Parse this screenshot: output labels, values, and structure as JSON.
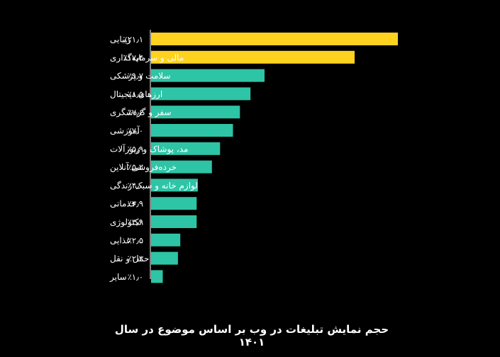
{
  "chart_data": {
    "type": "bar",
    "orientation": "horizontal",
    "title": "حجم نمایش تبلیغات در وب بر اساس موضوع در سال ۱۴۰۱",
    "categories": [
      "زیبایی",
      "مالی و سرمایه‌گذاری",
      "سلامت و پزشکی",
      "ارزهای دیجیتال",
      "سفر و گردشگری",
      "آموزشی",
      "مد، پوشاک و زیورآلات",
      "خرده‌فروشی آنلاین",
      "لوازم خانه و سبک زندگی",
      "خدماتی",
      "تکنولوژی",
      "غذایی",
      "حمل و نقل",
      "سایر"
    ],
    "values": [
      21.1,
      17.4,
      9.7,
      8.5,
      7.6,
      7.0,
      5.9,
      5.2,
      4.0,
      3.9,
      3.9,
      2.5,
      2.3,
      1.0
    ],
    "value_labels": [
      "٪۲۱٫۱",
      "٪۱۷٫۴",
      "٪۹٫۷",
      "٪۸٫۵",
      "٪۷٫۶",
      "٪۷٫۰",
      "٪۵٫۹",
      "٪۵٫۲",
      "٪۴٫۰",
      "٪۳٫۹",
      "٪۳٫۹",
      "٪۲٫۵",
      "٪۲٫۳",
      "٪۱٫۰"
    ],
    "highlight_count": 2,
    "colors": {
      "highlight": "#FFD21F",
      "default": "#2EC4A6",
      "axis": "#ffffff",
      "text": "#ffffff",
      "background": "#000000"
    },
    "xlim": [
      0,
      21.1
    ],
    "grid": false,
    "legend": "none"
  }
}
